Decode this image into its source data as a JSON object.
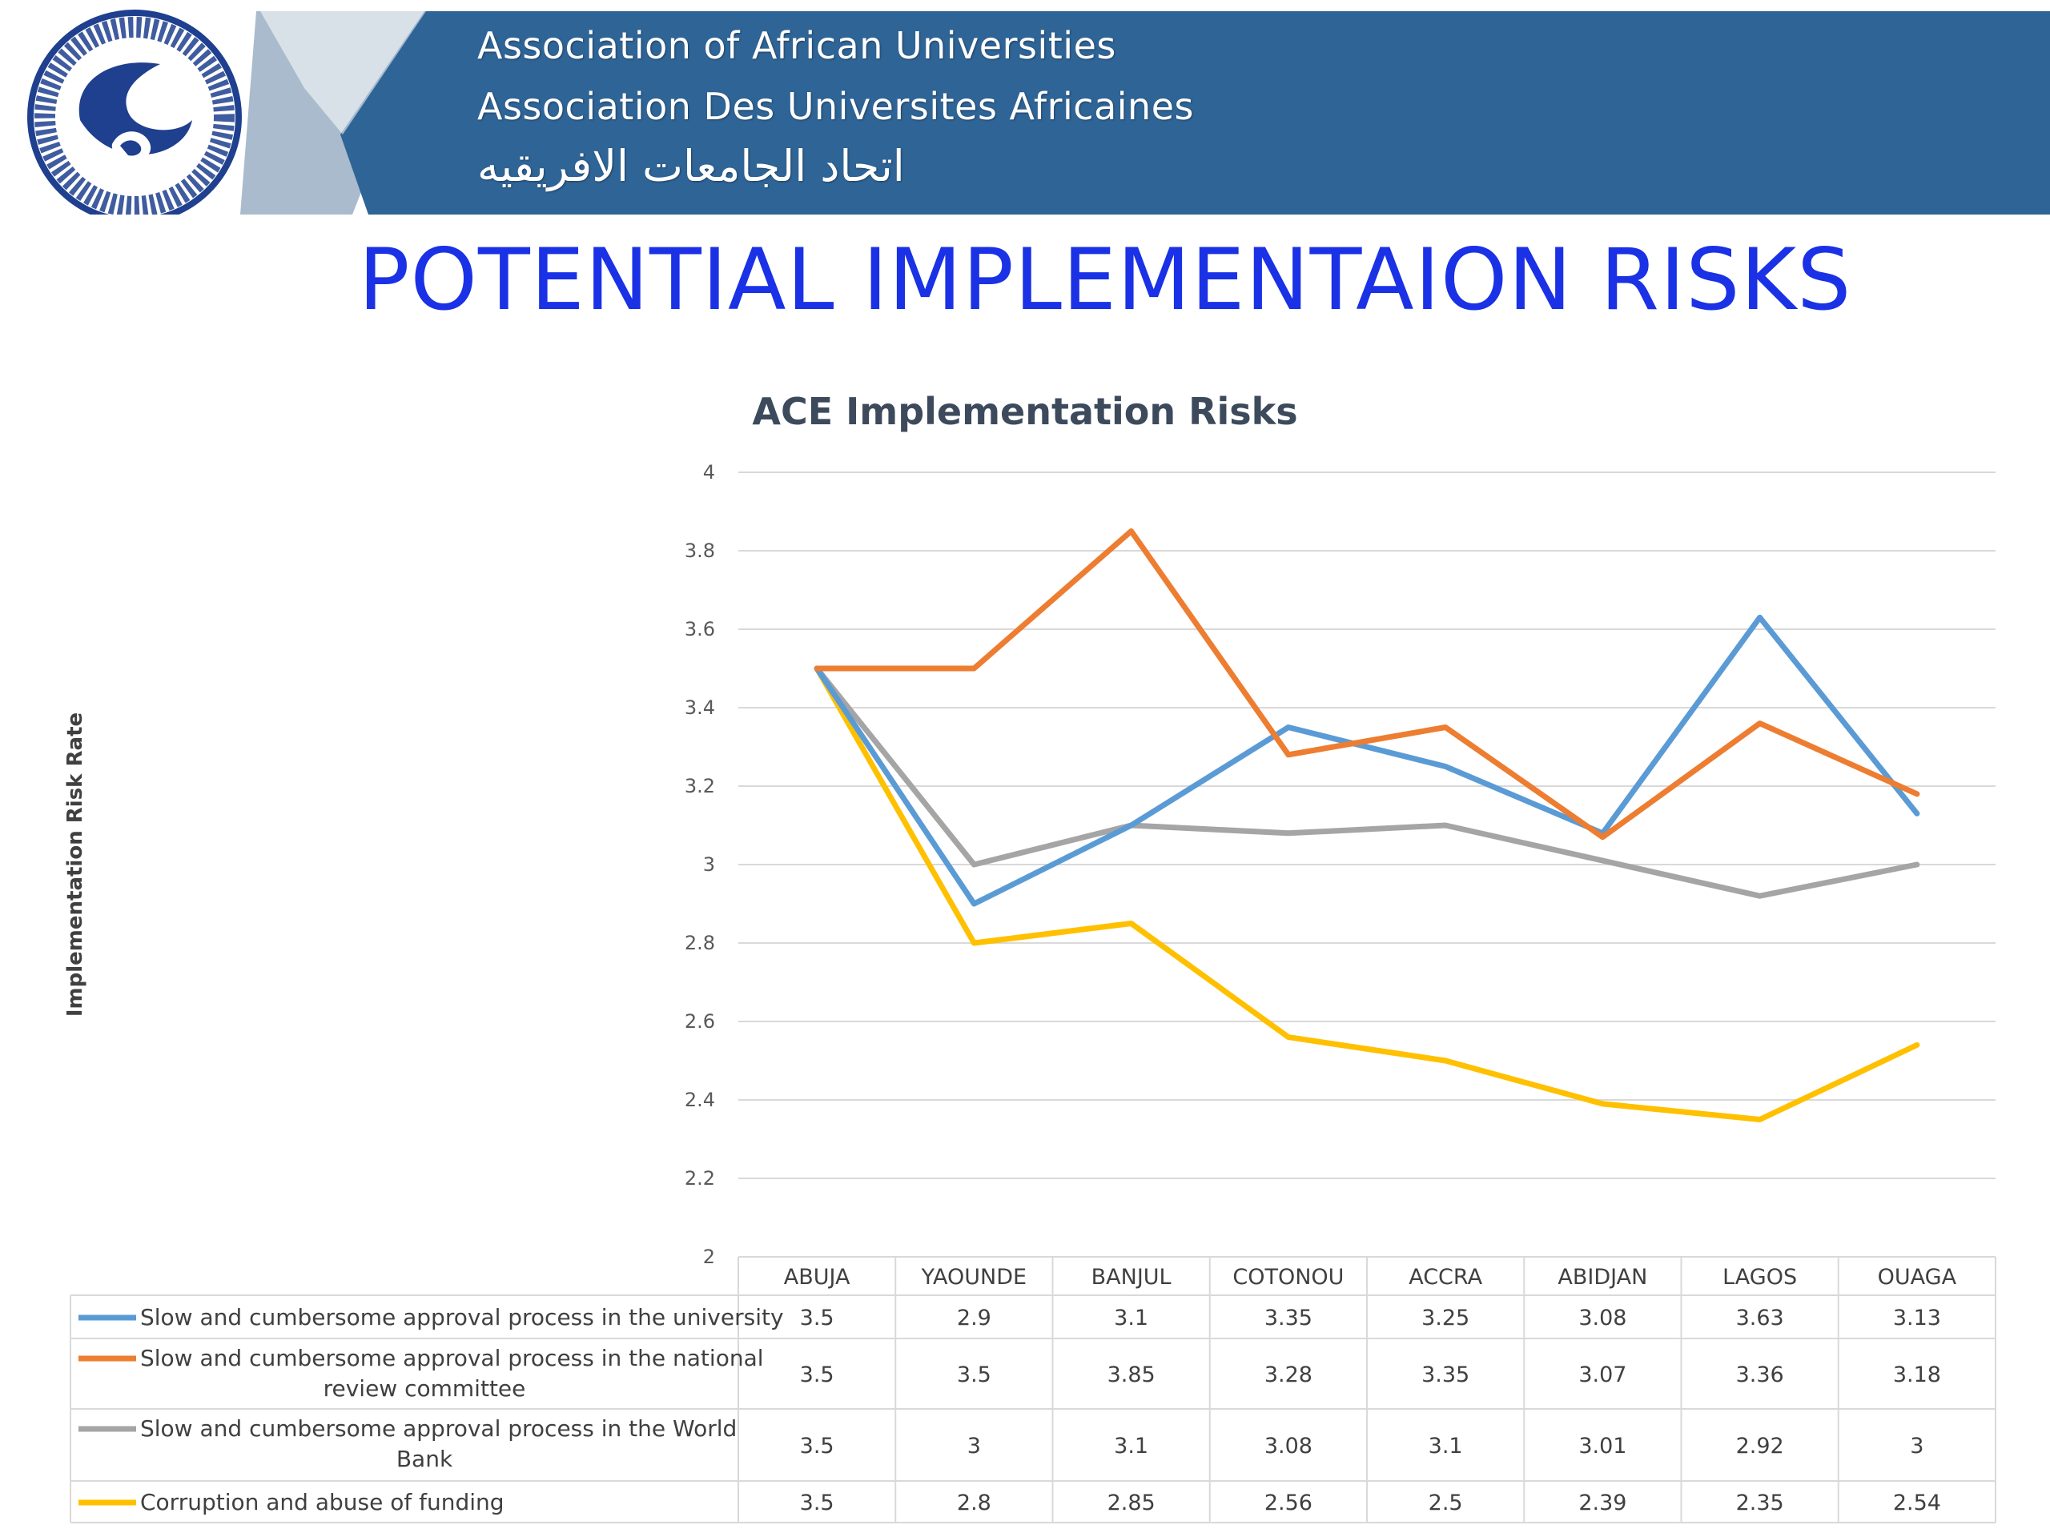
{
  "header": {
    "lines": [
      "Association of African Universities",
      "Association Des Universites Africaines",
      "اتحاد الجامعات الافريقيه"
    ],
    "colors": {
      "band": "#2f6496",
      "light_band": "#a9bbcc"
    },
    "logo_icon": "aau-logo-icon"
  },
  "slide": {
    "title": "POTENTIAL IMPLEMENTAION RISKS"
  },
  "chart_data": {
    "type": "line",
    "title": "ACE Implementation Risks",
    "ylabel": "Implementation Risk Rate",
    "xlabel": "",
    "ylim": [
      2,
      4
    ],
    "yticks": [
      2,
      2.2,
      2.4,
      2.6,
      2.8,
      3,
      3.2,
      3.4,
      3.6,
      3.8,
      4
    ],
    "grid": true,
    "legend": "data-table",
    "categories": [
      "ABUJA",
      "YAOUNDE",
      "BANJUL",
      "COTONOU",
      "ACCRA",
      "ABIDJAN",
      "LAGOS",
      "OUAGA"
    ],
    "series": [
      {
        "name": "Slow and cumbersome approval process in the university",
        "color": "#5b9bd5",
        "values": [
          3.5,
          2.9,
          3.1,
          3.35,
          3.25,
          3.08,
          3.63,
          3.13
        ]
      },
      {
        "name": "Slow and cumbersome approval process in the national review committee",
        "color": "#ed7d31",
        "values": [
          3.5,
          3.5,
          3.85,
          3.28,
          3.35,
          3.07,
          3.36,
          3.18
        ]
      },
      {
        "name": "Slow and cumbersome approval process in the World Bank",
        "color": "#a5a5a5",
        "values": [
          3.5,
          3,
          3.1,
          3.08,
          3.1,
          3.01,
          2.92,
          3
        ]
      },
      {
        "name": "Corruption and abuse of funding",
        "color": "#ffc000",
        "values": [
          3.5,
          2.8,
          2.85,
          2.56,
          2.5,
          2.39,
          2.35,
          2.54
        ]
      }
    ]
  }
}
